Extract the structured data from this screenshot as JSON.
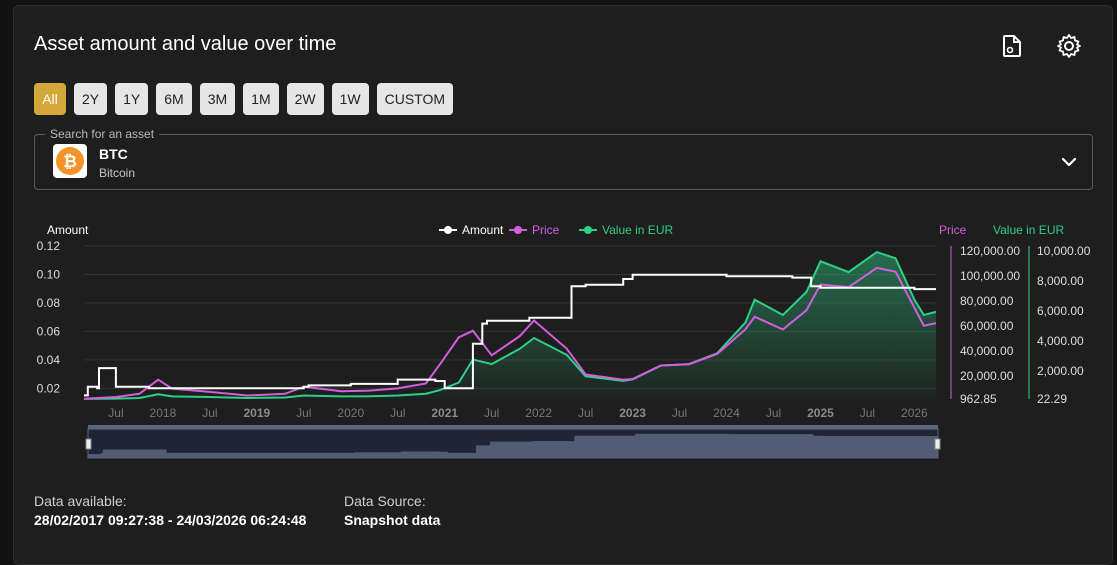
{
  "header": {
    "title": "Asset amount and value over time"
  },
  "ranges": [
    {
      "label": "All",
      "active": true
    },
    {
      "label": "2Y",
      "active": false
    },
    {
      "label": "1Y",
      "active": false
    },
    {
      "label": "6M",
      "active": false
    },
    {
      "label": "3M",
      "active": false
    },
    {
      "label": "1M",
      "active": false
    },
    {
      "label": "2W",
      "active": false
    },
    {
      "label": "1W",
      "active": false
    },
    {
      "label": "CUSTOM",
      "active": false
    }
  ],
  "asset_search": {
    "legend": "Search for an asset",
    "symbol": "BTC",
    "name": "Bitcoin",
    "logo_glyph": "₿"
  },
  "info": {
    "available_label": "Data available:",
    "available_value": "28/02/2017 09:27:38 - 24/03/2026 06:24:48",
    "source_label": "Data Source:",
    "source_value": "Snapshot data"
  },
  "colors": {
    "accent": "#d4a73a",
    "amount": "#ffffff",
    "price": "#d35ee0",
    "value": "#2fcf86"
  },
  "chart_data": {
    "type": "line",
    "legend": [
      "Amount",
      "Price",
      "Value in EUR"
    ],
    "left_axis_label": "Amount",
    "right_axis_labels": [
      "Price",
      "Value in EUR"
    ],
    "amount_ticks": [
      "0.12",
      "0.10",
      "0.08",
      "0.06",
      "0.04",
      "0.02"
    ],
    "price_ticks": [
      "120,000.00",
      "100,000.00",
      "80,000.00",
      "60,000.00",
      "40,000.00",
      "20,000.00",
      "962.85"
    ],
    "value_ticks": [
      "10,000.00",
      "8,000.00",
      "6,000.00",
      "4,000.00",
      "2,000.00",
      "22.29"
    ],
    "x_ticks": [
      {
        "label": "Jul",
        "bold": false,
        "t": 2017.5
      },
      {
        "label": "2018",
        "bold": false,
        "t": 2018.0
      },
      {
        "label": "Jul",
        "bold": false,
        "t": 2018.5
      },
      {
        "label": "2019",
        "bold": true,
        "t": 2019.0
      },
      {
        "label": "Jul",
        "bold": false,
        "t": 2019.5
      },
      {
        "label": "2020",
        "bold": false,
        "t": 2020.0
      },
      {
        "label": "Jul",
        "bold": false,
        "t": 2020.5
      },
      {
        "label": "2021",
        "bold": true,
        "t": 2021.0
      },
      {
        "label": "Jul",
        "bold": false,
        "t": 2021.5
      },
      {
        "label": "2022",
        "bold": false,
        "t": 2022.0
      },
      {
        "label": "Jul",
        "bold": false,
        "t": 2022.5
      },
      {
        "label": "2023",
        "bold": true,
        "t": 2023.0
      },
      {
        "label": "Jul",
        "bold": false,
        "t": 2023.5
      },
      {
        "label": "2024",
        "bold": false,
        "t": 2024.0
      },
      {
        "label": "Jul",
        "bold": false,
        "t": 2024.5
      },
      {
        "label": "2025",
        "bold": true,
        "t": 2025.0
      },
      {
        "label": "Jul",
        "bold": false,
        "t": 2025.5
      },
      {
        "label": "2026",
        "bold": false,
        "t": 2026.0
      }
    ],
    "x_range": [
      2017.16,
      2026.23
    ],
    "amount_range": [
      0.0135,
      0.12
    ],
    "price_range": [
      962.85,
      120000
    ],
    "value_range": [
      22.29,
      10000
    ],
    "series": [
      {
        "name": "Amount",
        "x": [
          2017.16,
          2017.2,
          2017.3,
          2017.32,
          2017.5,
          2017.6,
          2017.85,
          2018.0,
          2019.0,
          2019.5,
          2019.55,
          2020.0,
          2020.3,
          2020.5,
          2020.8,
          2020.9,
          2021.0,
          2021.3,
          2021.4,
          2021.45,
          2021.9,
          2022.3,
          2022.35,
          2022.5,
          2022.55,
          2022.9,
          2023.0,
          2023.5,
          2024.0,
          2024.5,
          2024.7,
          2024.9,
          2025.0,
          2025.5,
          2026.0,
          2026.23
        ],
        "y": [
          0.016,
          0.022,
          0.021,
          0.035,
          0.022,
          0.022,
          0.021,
          0.021,
          0.021,
          0.022,
          0.023,
          0.024,
          0.024,
          0.027,
          0.027,
          0.026,
          0.021,
          0.052,
          0.066,
          0.068,
          0.07,
          0.07,
          0.092,
          0.093,
          0.093,
          0.097,
          0.1,
          0.1,
          0.099,
          0.099,
          0.098,
          0.092,
          0.091,
          0.091,
          0.09,
          0.09
        ]
      },
      {
        "name": "Price",
        "x": [
          2017.16,
          2017.5,
          2017.75,
          2017.95,
          2018.1,
          2018.5,
          2018.9,
          2019.3,
          2019.5,
          2019.9,
          2020.2,
          2020.5,
          2020.8,
          2020.95,
          2021.15,
          2021.3,
          2021.5,
          2021.8,
          2021.95,
          2022.3,
          2022.5,
          2022.9,
          2023.0,
          2023.3,
          2023.6,
          2023.9,
          2024.2,
          2024.3,
          2024.6,
          2024.85,
          2025.0,
          2025.3,
          2025.6,
          2025.8,
          2026.0,
          2026.1,
          2026.23
        ],
        "y": [
          1100,
          2500,
          5000,
          16000,
          9000,
          6500,
          3700,
          5000,
          10500,
          7000,
          7500,
          9200,
          13000,
          28000,
          49000,
          54000,
          35000,
          50000,
          62000,
          40000,
          20000,
          16000,
          16500,
          27000,
          28000,
          36000,
          55000,
          65000,
          55000,
          70000,
          90000,
          88000,
          103000,
          100000,
          72000,
          58000,
          60000
        ]
      },
      {
        "name": "Value in EUR",
        "x": [
          2017.16,
          2017.5,
          2017.75,
          2017.95,
          2018.1,
          2018.5,
          2018.9,
          2019.3,
          2019.5,
          2019.9,
          2020.2,
          2020.5,
          2020.8,
          2020.95,
          2021.15,
          2021.3,
          2021.5,
          2021.8,
          2021.95,
          2022.3,
          2022.5,
          2022.9,
          2023.0,
          2023.3,
          2023.6,
          2023.9,
          2024.2,
          2024.3,
          2024.6,
          2024.85,
          2025.0,
          2025.3,
          2025.6,
          2025.8,
          2026.0,
          2026.1,
          2026.23
        ],
        "y": [
          30,
          50,
          90,
          330,
          190,
          150,
          90,
          120,
          250,
          190,
          200,
          250,
          370,
          600,
          1100,
          2600,
          2300,
          3300,
          4000,
          2900,
          1500,
          1200,
          1300,
          2200,
          2300,
          3000,
          5000,
          6500,
          5500,
          7000,
          9000,
          8300,
          9600,
          9200,
          6500,
          5500,
          5700
        ]
      }
    ],
    "navigator": {
      "x": [
        2017.16,
        2017.3,
        2017.32,
        2018.0,
        2019.0,
        2020.0,
        2020.5,
        2020.9,
        2021.0,
        2021.3,
        2021.45,
        2021.9,
        2022.3,
        2022.35,
        2023.0,
        2024.0,
        2024.9,
        2025.0,
        2026.23
      ],
      "y": [
        0.016,
        0.021,
        0.035,
        0.021,
        0.021,
        0.024,
        0.027,
        0.026,
        0.021,
        0.052,
        0.068,
        0.07,
        0.07,
        0.092,
        0.1,
        0.099,
        0.092,
        0.091,
        0.09
      ]
    }
  }
}
